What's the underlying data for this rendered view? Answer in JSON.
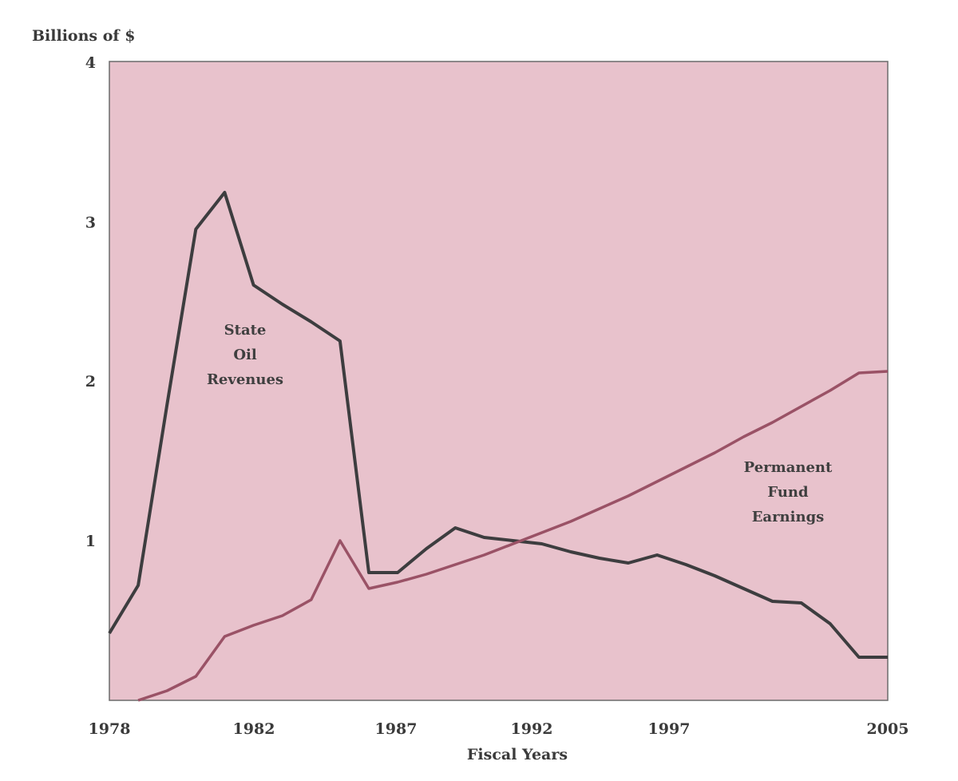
{
  "chart_data": {
    "type": "line",
    "ylabel": "Billions of $",
    "xlabel": "Fiscal Years",
    "xlim": [
      1978,
      2005
    ],
    "ylim": [
      0,
      4
    ],
    "x_ticks": [
      "1978",
      "1982",
      "1987",
      "1992",
      "1997",
      "2005"
    ],
    "y_ticks": [
      "1",
      "2",
      "3",
      "4"
    ],
    "grid": false,
    "background_color": "#e8c2cc",
    "series": [
      {
        "name": "State Oil Revenues",
        "label_lines": [
          "State",
          "Oil",
          "Revenues"
        ],
        "color": "#3d3d3f",
        "x": [
          1978,
          1979,
          1980,
          1981,
          1982,
          1983,
          1984,
          1985,
          1986,
          1987,
          1988,
          1989,
          1990,
          1991,
          1992,
          1993,
          1994,
          1995,
          1996,
          1997,
          1998,
          1999,
          2000,
          2001,
          2002,
          2003,
          2004,
          2005
        ],
        "values": [
          0.42,
          0.72,
          1.85,
          2.95,
          3.18,
          2.6,
          2.48,
          2.37,
          2.25,
          0.8,
          0.8,
          0.95,
          1.08,
          1.02,
          1.0,
          0.98,
          0.93,
          0.89,
          0.86,
          0.91,
          0.85,
          0.78,
          0.7,
          0.62,
          0.61,
          0.48,
          0.27,
          0.27
        ]
      },
      {
        "name": "Permanent Fund Earnings",
        "label_lines": [
          "Permanent",
          "Fund",
          "Earnings"
        ],
        "color": "#9a5266",
        "x": [
          1979,
          1980,
          1981,
          1982,
          1983,
          1984,
          1985,
          1986,
          1987,
          1988,
          1989,
          1990,
          1991,
          1992,
          1993,
          1994,
          1995,
          1996,
          1997,
          1998,
          1999,
          2000,
          2001,
          2002,
          2003,
          2004,
          2005
        ],
        "values": [
          0.0,
          0.06,
          0.15,
          0.4,
          0.47,
          0.53,
          0.63,
          1.0,
          0.7,
          0.74,
          0.79,
          0.85,
          0.91,
          0.98,
          1.05,
          1.12,
          1.2,
          1.28,
          1.37,
          1.46,
          1.55,
          1.65,
          1.74,
          1.84,
          1.94,
          2.05,
          2.06
        ]
      }
    ]
  }
}
